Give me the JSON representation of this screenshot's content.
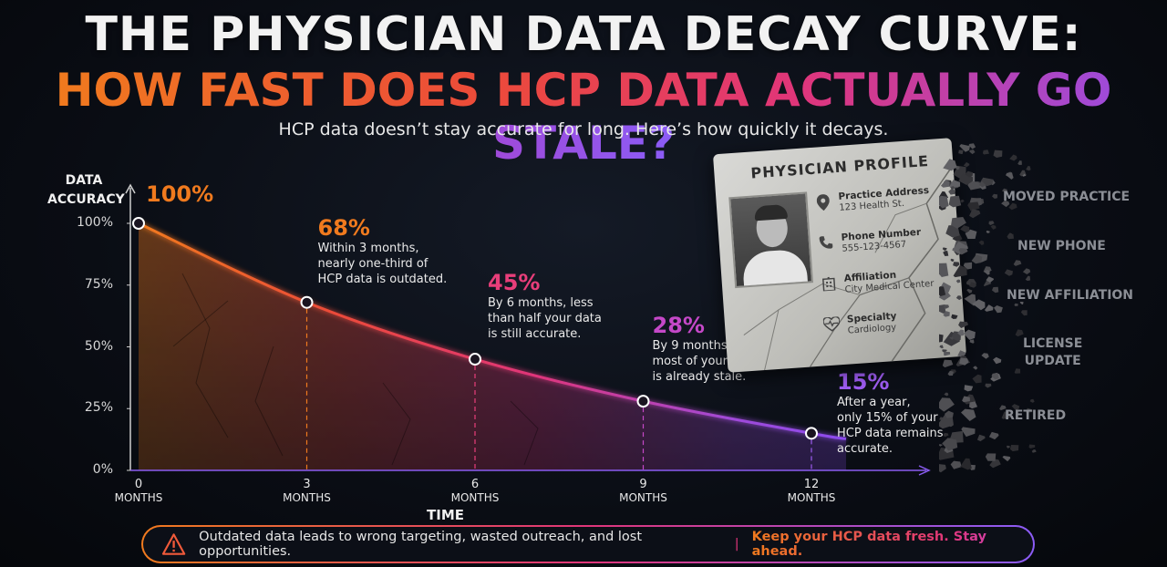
{
  "header": {
    "title_line1": "THE PHYSICIAN DATA DECAY CURVE:",
    "title_line2": "HOW FAST DOES HCP DATA ACTUALLY GO STALE?",
    "subtitle": "HCP data doesn’t stay accurate for long. Here’s how quickly it decays."
  },
  "chart_data": {
    "type": "area",
    "ylabel": "DATA\nACCURACY",
    "xlabel": "TIME",
    "x": [
      0,
      3,
      6,
      9,
      12
    ],
    "x_tick_labels": [
      {
        "num": "0",
        "unit": "MONTHS"
      },
      {
        "num": "3",
        "unit": "MONTHS"
      },
      {
        "num": "6",
        "unit": "MONTHS"
      },
      {
        "num": "9",
        "unit": "MONTHS"
      },
      {
        "num": "12",
        "unit": "MONTHS"
      }
    ],
    "y_ticks": [
      0,
      25,
      50,
      75,
      100
    ],
    "y_tick_labels": [
      "0%",
      "25%",
      "50%",
      "75%",
      "100%"
    ],
    "ylim": [
      0,
      100
    ],
    "xlim": [
      0,
      12
    ],
    "values": [
      100,
      68,
      45,
      28,
      15
    ],
    "annotations": [
      {
        "label": "100%",
        "text": "",
        "color": "#f07a1e"
      },
      {
        "label": "68%",
        "text": "Within 3 months,\nnearly one-third of\nHCP data is outdated.",
        "color": "#f07a1e"
      },
      {
        "label": "45%",
        "text": "By 6 months, less\nthan half your data\nis still accurate.",
        "color": "#e83e7a"
      },
      {
        "label": "28%",
        "text": "By 9 months,\nmost of your data\nis already stale.",
        "color": "#c548c8"
      },
      {
        "label": "15%",
        "text": "After a year,\nonly 15% of your\nHCP data remains\naccurate.",
        "color": "#9d5cf0"
      }
    ],
    "gradient_colors": [
      "#f07a1e",
      "#ec4a3a",
      "#e0357a",
      "#a04ad8",
      "#7c4dff"
    ],
    "grid": false
  },
  "profile_card": {
    "title": "PHYSICIAN PROFILE",
    "fields": [
      {
        "icon": "location-pin-icon",
        "label": "Practice Address",
        "value": "123 Health St."
      },
      {
        "icon": "phone-icon",
        "label": "Phone Number",
        "value": "555-123-4567"
      },
      {
        "icon": "building-icon",
        "label": "Affiliation",
        "value": "City Medical Center"
      },
      {
        "icon": "heart-pulse-icon",
        "label": "Specialty",
        "value": "Cardiology"
      }
    ]
  },
  "changes": [
    "MOVED PRACTICE",
    "NEW PHONE",
    "NEW AFFILIATION",
    "LICENSE\nUPDATE",
    "RETIRED"
  ],
  "footer": {
    "message": "Outdated data leads to wrong targeting, wasted outreach, and lost opportunities.",
    "separator": "|",
    "cta": "Keep your HCP data fresh. Stay ahead.",
    "icon": "warning-triangle-icon"
  }
}
